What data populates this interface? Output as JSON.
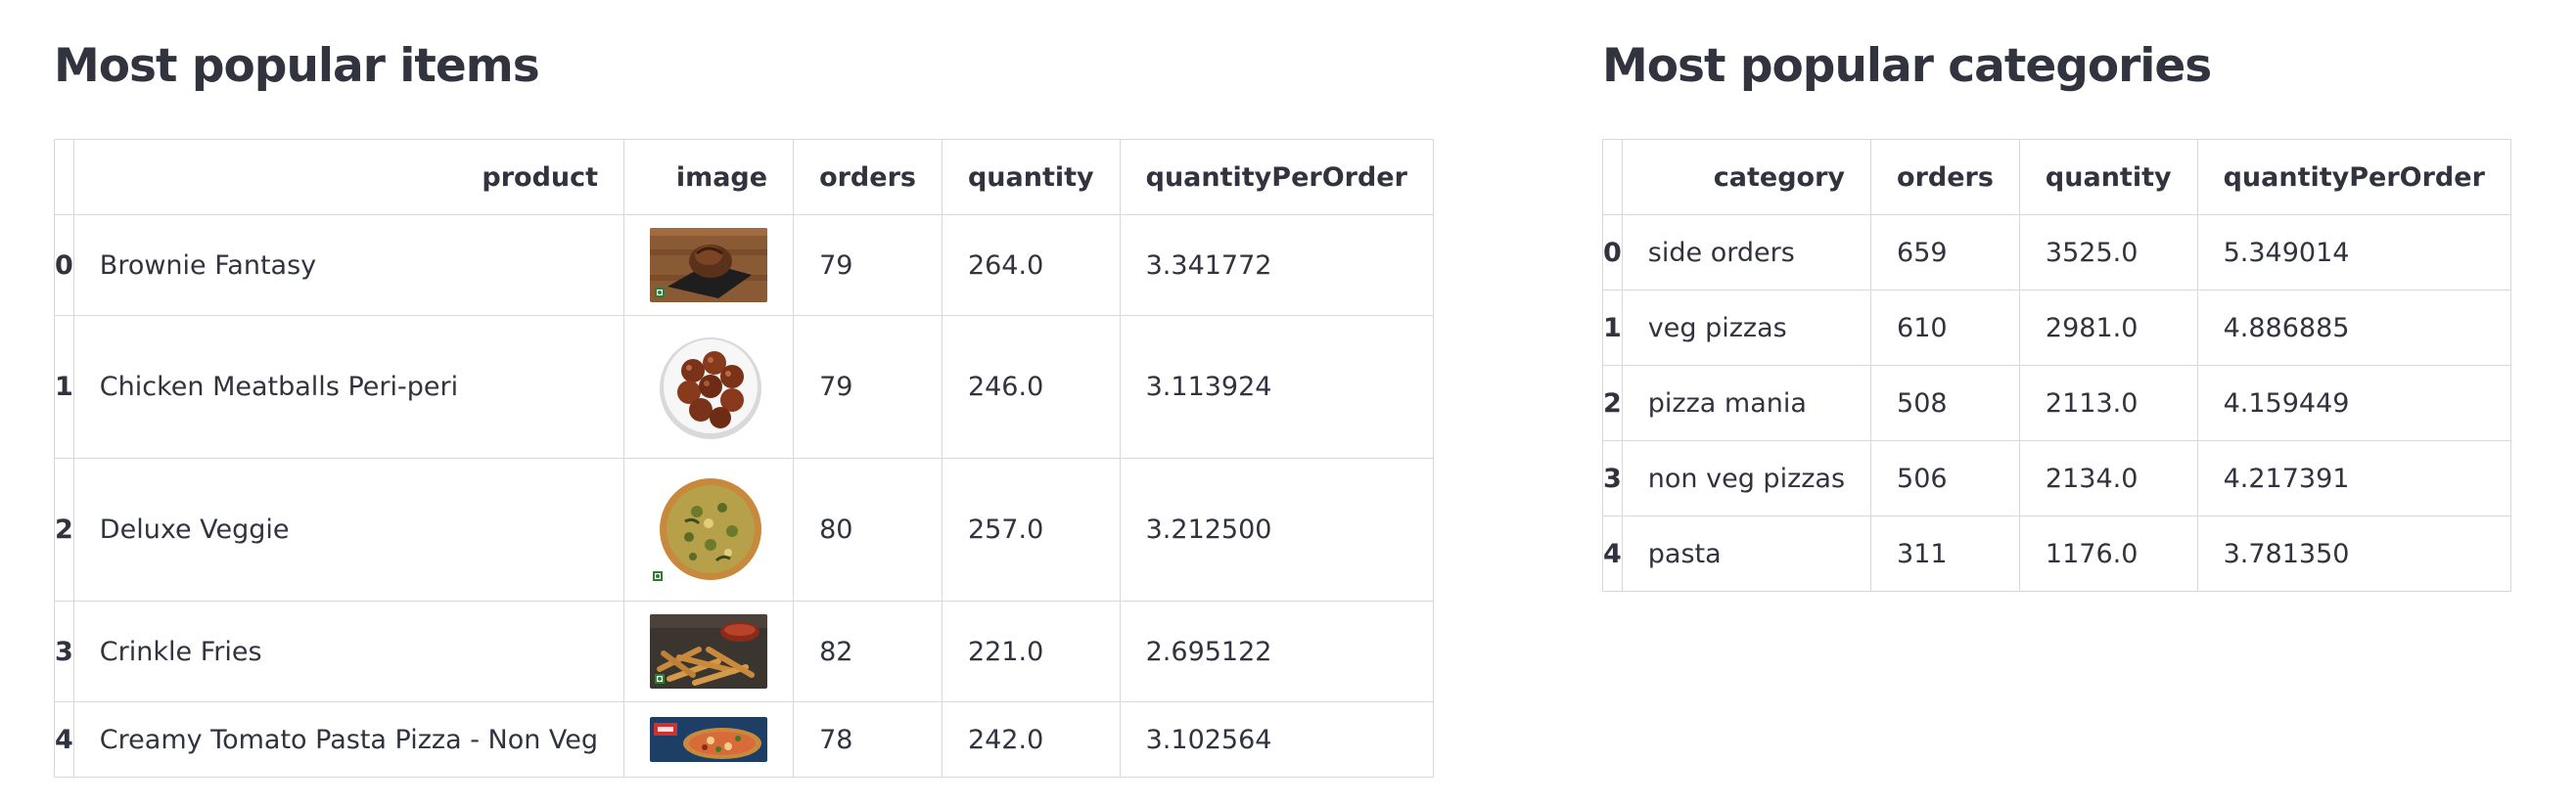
{
  "items_section": {
    "title": "Most popular items",
    "columns": [
      "",
      "product",
      "image",
      "orders",
      "quantity",
      "quantityPerOrder"
    ],
    "rows": [
      {
        "index": "0",
        "product": "Brownie Fantasy",
        "image_icon": "brownie-image",
        "orders": "79",
        "quantity": "264.0",
        "quantityPerOrder": "3.341772"
      },
      {
        "index": "1",
        "product": "Chicken Meatballs Peri-peri",
        "image_icon": "meatballs-image",
        "orders": "79",
        "quantity": "246.0",
        "quantityPerOrder": "3.113924"
      },
      {
        "index": "2",
        "product": "Deluxe Veggie",
        "image_icon": "pizza-image",
        "orders": "80",
        "quantity": "257.0",
        "quantityPerOrder": "3.212500"
      },
      {
        "index": "3",
        "product": "Crinkle Fries",
        "image_icon": "fries-image",
        "orders": "82",
        "quantity": "221.0",
        "quantityPerOrder": "2.695122"
      },
      {
        "index": "4",
        "product": "Creamy Tomato Pasta Pizza - Non Veg",
        "image_icon": "pasta-pizza-image",
        "orders": "78",
        "quantity": "242.0",
        "quantityPerOrder": "3.102564"
      }
    ]
  },
  "categories_section": {
    "title": "Most popular categories",
    "columns": [
      "",
      "category",
      "orders",
      "quantity",
      "quantityPerOrder"
    ],
    "rows": [
      {
        "index": "0",
        "category": "side orders",
        "orders": "659",
        "quantity": "3525.0",
        "quantityPerOrder": "5.349014"
      },
      {
        "index": "1",
        "category": "veg pizzas",
        "orders": "610",
        "quantity": "2981.0",
        "quantityPerOrder": "4.886885"
      },
      {
        "index": "2",
        "category": "pizza mania",
        "orders": "508",
        "quantity": "2113.0",
        "quantityPerOrder": "4.159449"
      },
      {
        "index": "3",
        "category": "non veg pizzas",
        "orders": "506",
        "quantity": "2134.0",
        "quantityPerOrder": "4.217391"
      },
      {
        "index": "4",
        "category": "pasta",
        "orders": "311",
        "quantity": "1176.0",
        "quantityPerOrder": "3.781350"
      }
    ]
  },
  "colors": {
    "text": "#31333f",
    "border": "#d8d8dc",
    "background": "#ffffff"
  }
}
